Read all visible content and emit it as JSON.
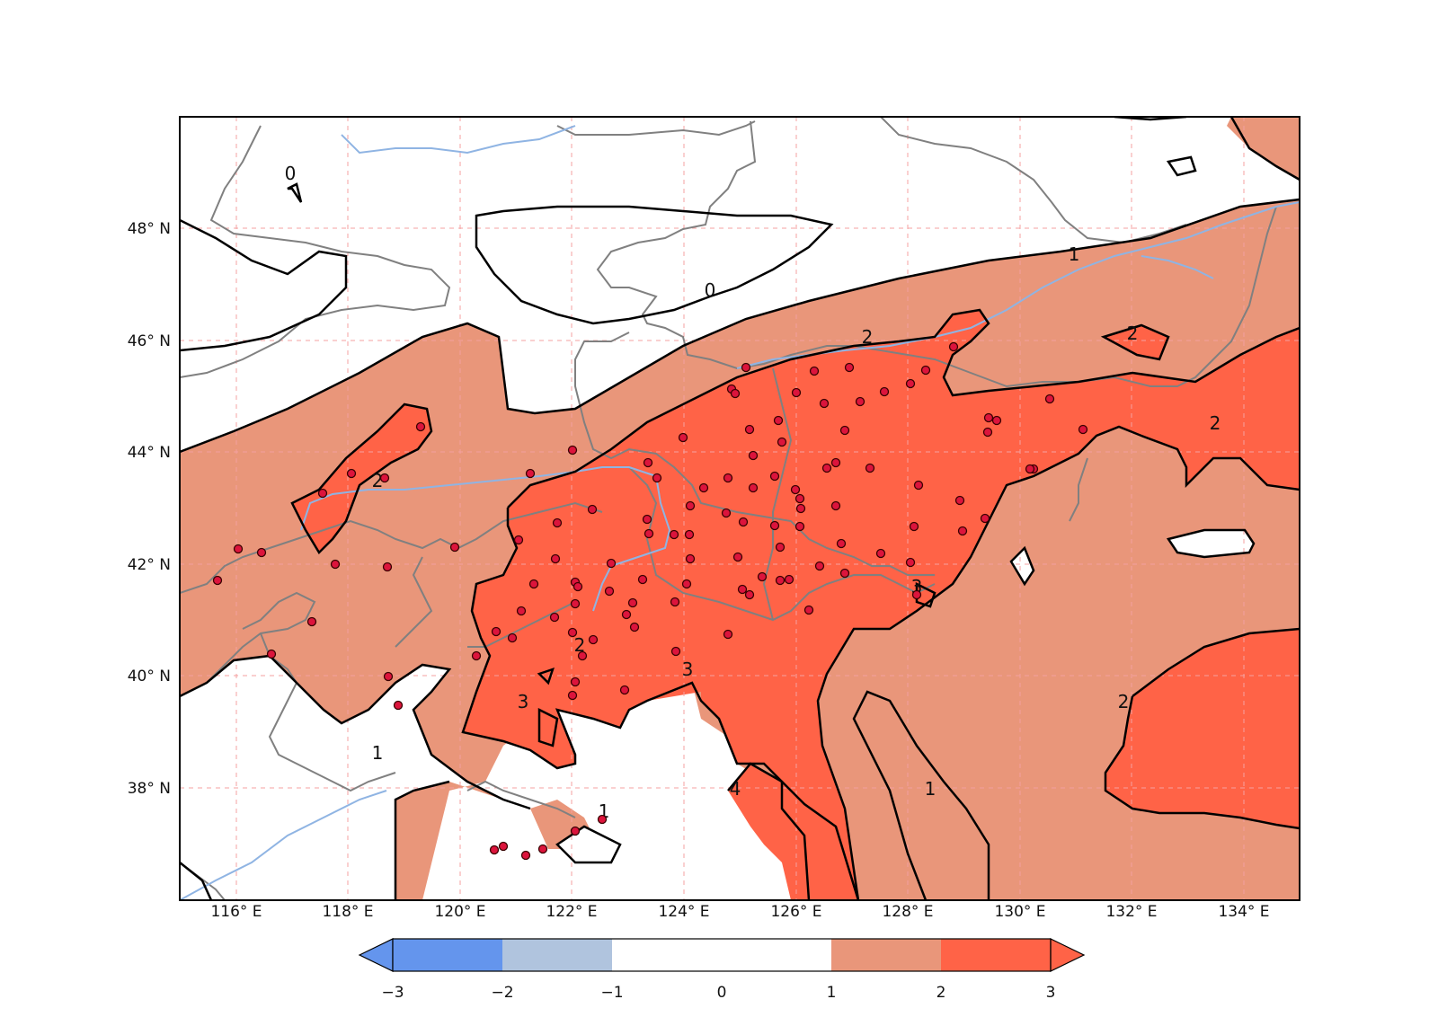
{
  "map": {
    "lon_range": [
      115,
      135
    ],
    "lat_range": [
      36,
      50
    ],
    "lon_ticks": [
      {
        "value": 116,
        "label": "116° E"
      },
      {
        "value": 118,
        "label": "118° E"
      },
      {
        "value": 120,
        "label": "120° E"
      },
      {
        "value": 122,
        "label": "122° E"
      },
      {
        "value": 124,
        "label": "124° E"
      },
      {
        "value": 126,
        "label": "126° E"
      },
      {
        "value": 128,
        "label": "128° E"
      },
      {
        "value": 130,
        "label": "130° E"
      },
      {
        "value": 132,
        "label": "132° E"
      },
      {
        "value": 134,
        "label": "134° E"
      }
    ],
    "lat_ticks": [
      {
        "value": 48,
        "label": "48° N"
      },
      {
        "value": 46,
        "label": "46° N"
      },
      {
        "value": 44,
        "label": "44° N"
      },
      {
        "value": 42,
        "label": "42° N"
      },
      {
        "value": 40,
        "label": "40° N"
      },
      {
        "value": 38,
        "label": "38° N"
      }
    ],
    "grid": true,
    "contour_labels": [
      "0",
      "1",
      "2",
      "3",
      "4"
    ],
    "colors": {
      "below_-2": "#6495ed",
      "-2_to_-1": "#b0c4de",
      "-1_to_1": "#ffffff",
      "1_to_2": "#e9967a",
      "2_to_3": "#ff6347",
      "above_3": "#ff6347",
      "station": "#dc143c",
      "border": "#808080",
      "river": "#8fb4e3",
      "grid": "#f4a0a0",
      "contour": "#000000"
    }
  },
  "colorbar": {
    "bounds": [
      "−3",
      "−2",
      "−1",
      "0",
      "1",
      "2",
      "3"
    ],
    "colors": [
      "#6495ed",
      "#b0c4de",
      "#ffffff",
      "#ffffff",
      "#e9967a",
      "#ff6347"
    ],
    "extend": "both"
  }
}
